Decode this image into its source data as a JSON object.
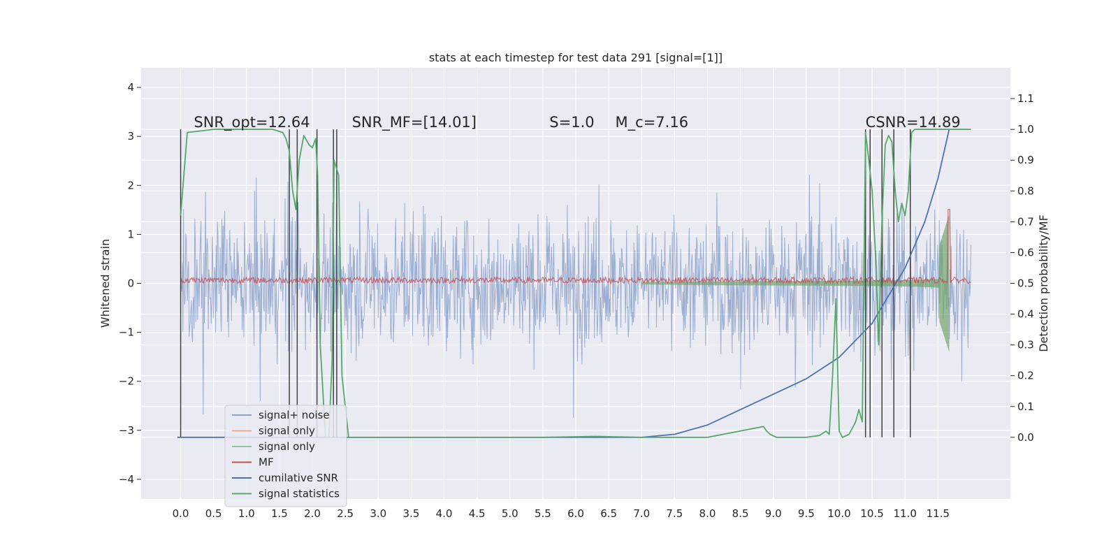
{
  "chart_data": {
    "type": "line",
    "title": "stats at each timestep for test data 291 [signal=[1]]",
    "ylabel_left": "Whitened strain",
    "ylabel_right": "Detection probability/MF",
    "xlabel": "",
    "xlim": [
      -0.6,
      12.6
    ],
    "ylim_left": [
      -4.4,
      4.4
    ],
    "ylim_right": [
      -0.2,
      1.2
    ],
    "x_ticks": [
      "0.0",
      "0.5",
      "1.0",
      "1.5",
      "2.0",
      "2.5",
      "3.0",
      "3.5",
      "4.0",
      "4.5",
      "5.0",
      "5.5",
      "6.0",
      "6.5",
      "7.0",
      "7.5",
      "8.0",
      "8.5",
      "9.0",
      "9.5",
      "10.0",
      "10.5",
      "11.0",
      "11.5"
    ],
    "y_left_ticks": [
      "4",
      "3",
      "2",
      "1",
      "0",
      "−1",
      "−2",
      "−3",
      "−4"
    ],
    "y_right_ticks": [
      "1.1",
      "1.0",
      "0.9",
      "0.8",
      "0.7",
      "0.6",
      "0.5",
      "0.4",
      "0.3",
      "0.2",
      "0.1",
      "0.0"
    ],
    "grid": true,
    "legend_position": "lower-left",
    "annotations": [
      {
        "text": "SNR_opt=12.64",
        "x": 0.2
      },
      {
        "text": "SNR_MF=[14.01]",
        "x": 2.6
      },
      {
        "text": "S=1.0",
        "x": 5.6
      },
      {
        "text": "M_c=7.16",
        "x": 6.6
      },
      {
        "text": "CSNR=14.89",
        "x": 10.4
      }
    ],
    "detection_markers_x": [
      0.0,
      1.65,
      1.77,
      2.07,
      2.32,
      2.37,
      10.4,
      10.47,
      10.65,
      10.83,
      11.08
    ],
    "series": [
      {
        "name": "signal+ noise",
        "color": "#4c72b0",
        "axis": "left",
        "kind": "noise",
        "x_range": [
          0.0,
          12.0
        ],
        "amplitude": 2.0
      },
      {
        "name": "signal only",
        "color": "#dd8452",
        "axis": "left",
        "kind": "chirp",
        "x_range": [
          0.0,
          11.67
        ],
        "amplitude": 1.4
      },
      {
        "name": "signal only",
        "color": "#55a868",
        "axis": "left",
        "kind": "chirp-fill",
        "x_range": [
          0.0,
          11.67
        ],
        "amplitude": 1.4
      },
      {
        "name": "MF",
        "color": "#c44e52",
        "axis": "right",
        "kind": "mf",
        "x_range": [
          0.0,
          12.0
        ],
        "base": 0.5,
        "peak": 0.74
      },
      {
        "name": "cumilative SNR",
        "color": "#4c72b0",
        "axis": "right",
        "kind": "cumulative",
        "x": [
          0.0,
          7.0,
          7.5,
          8.0,
          8.5,
          9.0,
          9.5,
          10.0,
          10.5,
          11.0,
          11.3,
          11.5,
          11.67
        ],
        "y": [
          0.0,
          0.0,
          0.01,
          0.04,
          0.09,
          0.14,
          0.19,
          0.26,
          0.37,
          0.55,
          0.7,
          0.84,
          1.0
        ]
      },
      {
        "name": "signal statistics",
        "color": "#55a868",
        "axis": "right",
        "kind": "line",
        "x": [
          0.0,
          0.1,
          0.5,
          1.0,
          1.4,
          1.55,
          1.6,
          1.65,
          1.7,
          1.75,
          1.8,
          1.87,
          1.95,
          2.0,
          2.05,
          2.08,
          2.12,
          2.2,
          2.25,
          2.3,
          2.33,
          2.4,
          2.45,
          2.55,
          3.0,
          5.5,
          6.3,
          7.0,
          8.0,
          8.85,
          8.9,
          8.95,
          9.05,
          9.5,
          9.7,
          9.8,
          9.85,
          9.9,
          9.95,
          10.0,
          10.05,
          10.15,
          10.25,
          10.3,
          10.35,
          10.4,
          10.45,
          10.5,
          10.55,
          10.6,
          10.65,
          10.7,
          10.75,
          10.8,
          10.85,
          10.9,
          10.95,
          11.0,
          11.05,
          11.1,
          11.15,
          11.2,
          11.3,
          11.5,
          12.0
        ],
        "y": [
          0.72,
          0.99,
          1.0,
          1.0,
          1.0,
          0.99,
          0.97,
          0.93,
          0.8,
          0.74,
          0.9,
          0.98,
          0.95,
          0.94,
          0.97,
          0.85,
          0.3,
          0.0,
          0.0,
          0.25,
          0.9,
          0.85,
          0.2,
          0.0,
          0.0,
          0.0,
          0.003,
          0.0,
          0.0,
          0.035,
          0.02,
          0.01,
          0.0,
          0.0,
          0.006,
          0.02,
          0.01,
          0.2,
          0.45,
          0.02,
          0.0,
          0.01,
          0.05,
          0.09,
          0.05,
          0.99,
          0.9,
          0.8,
          0.6,
          0.3,
          0.7,
          0.95,
          0.98,
          0.96,
          0.8,
          0.7,
          0.76,
          0.72,
          0.8,
          0.99,
          1.0,
          1.0,
          1.0,
          1.0,
          1.0
        ]
      }
    ]
  }
}
